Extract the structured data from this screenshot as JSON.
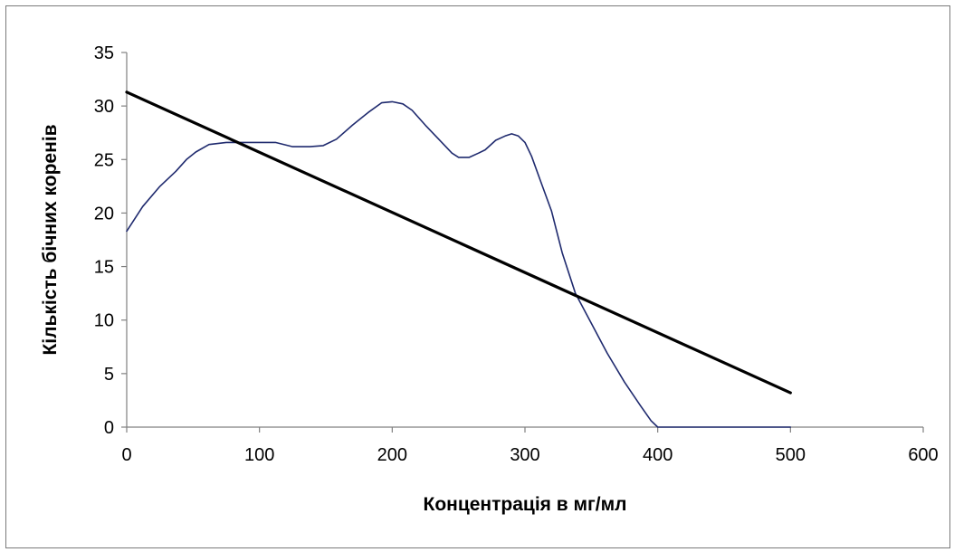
{
  "chart_data": {
    "type": "line",
    "title": "",
    "xlabel": "Концентрація в мг/мл",
    "ylabel": "Кількість бічних коренів",
    "xlim": [
      0,
      600
    ],
    "ylim": [
      0,
      35
    ],
    "x_ticks": [
      "0",
      "100",
      "200",
      "300",
      "400",
      "500",
      "600"
    ],
    "y_ticks": [
      "0",
      "5",
      "10",
      "15",
      "20",
      "25",
      "30",
      "35"
    ],
    "grid": false,
    "legend": "none",
    "colors": {
      "curve": "#1f2a6e",
      "trend": "#000000",
      "axis": "#808080"
    },
    "series": [
      {
        "values": [
          [
            0,
            18.3
          ],
          [
            12,
            20.6
          ],
          [
            25,
            22.5
          ],
          [
            37,
            23.9
          ],
          [
            45,
            25.0
          ],
          [
            52,
            25.7
          ],
          [
            62,
            26.4
          ],
          [
            75,
            26.6
          ],
          [
            88,
            26.6
          ],
          [
            100,
            26.6
          ],
          [
            112,
            26.6
          ],
          [
            125,
            26.2
          ],
          [
            138,
            26.2
          ],
          [
            148,
            26.3
          ],
          [
            158,
            26.9
          ],
          [
            170,
            28.2
          ],
          [
            182,
            29.4
          ],
          [
            192,
            30.3
          ],
          [
            200,
            30.4
          ],
          [
            208,
            30.2
          ],
          [
            215,
            29.6
          ],
          [
            225,
            28.2
          ],
          [
            235,
            26.9
          ],
          [
            245,
            25.6
          ],
          [
            250,
            25.2
          ],
          [
            258,
            25.2
          ],
          [
            265,
            25.6
          ],
          [
            270,
            25.9
          ],
          [
            278,
            26.8
          ],
          [
            285,
            27.2
          ],
          [
            290,
            27.4
          ],
          [
            295,
            27.2
          ],
          [
            300,
            26.6
          ],
          [
            305,
            25.3
          ],
          [
            312,
            22.9
          ],
          [
            320,
            20.2
          ],
          [
            328,
            16.3
          ],
          [
            338,
            12.5
          ],
          [
            350,
            9.7
          ],
          [
            362,
            6.9
          ],
          [
            375,
            4.2
          ],
          [
            387,
            2.0
          ],
          [
            395,
            0.6
          ],
          [
            400,
            0
          ],
          [
            440,
            0
          ],
          [
            500,
            0
          ]
        ]
      },
      {
        "values": [
          [
            0,
            31.3
          ],
          [
            500,
            3.2
          ]
        ]
      }
    ]
  }
}
